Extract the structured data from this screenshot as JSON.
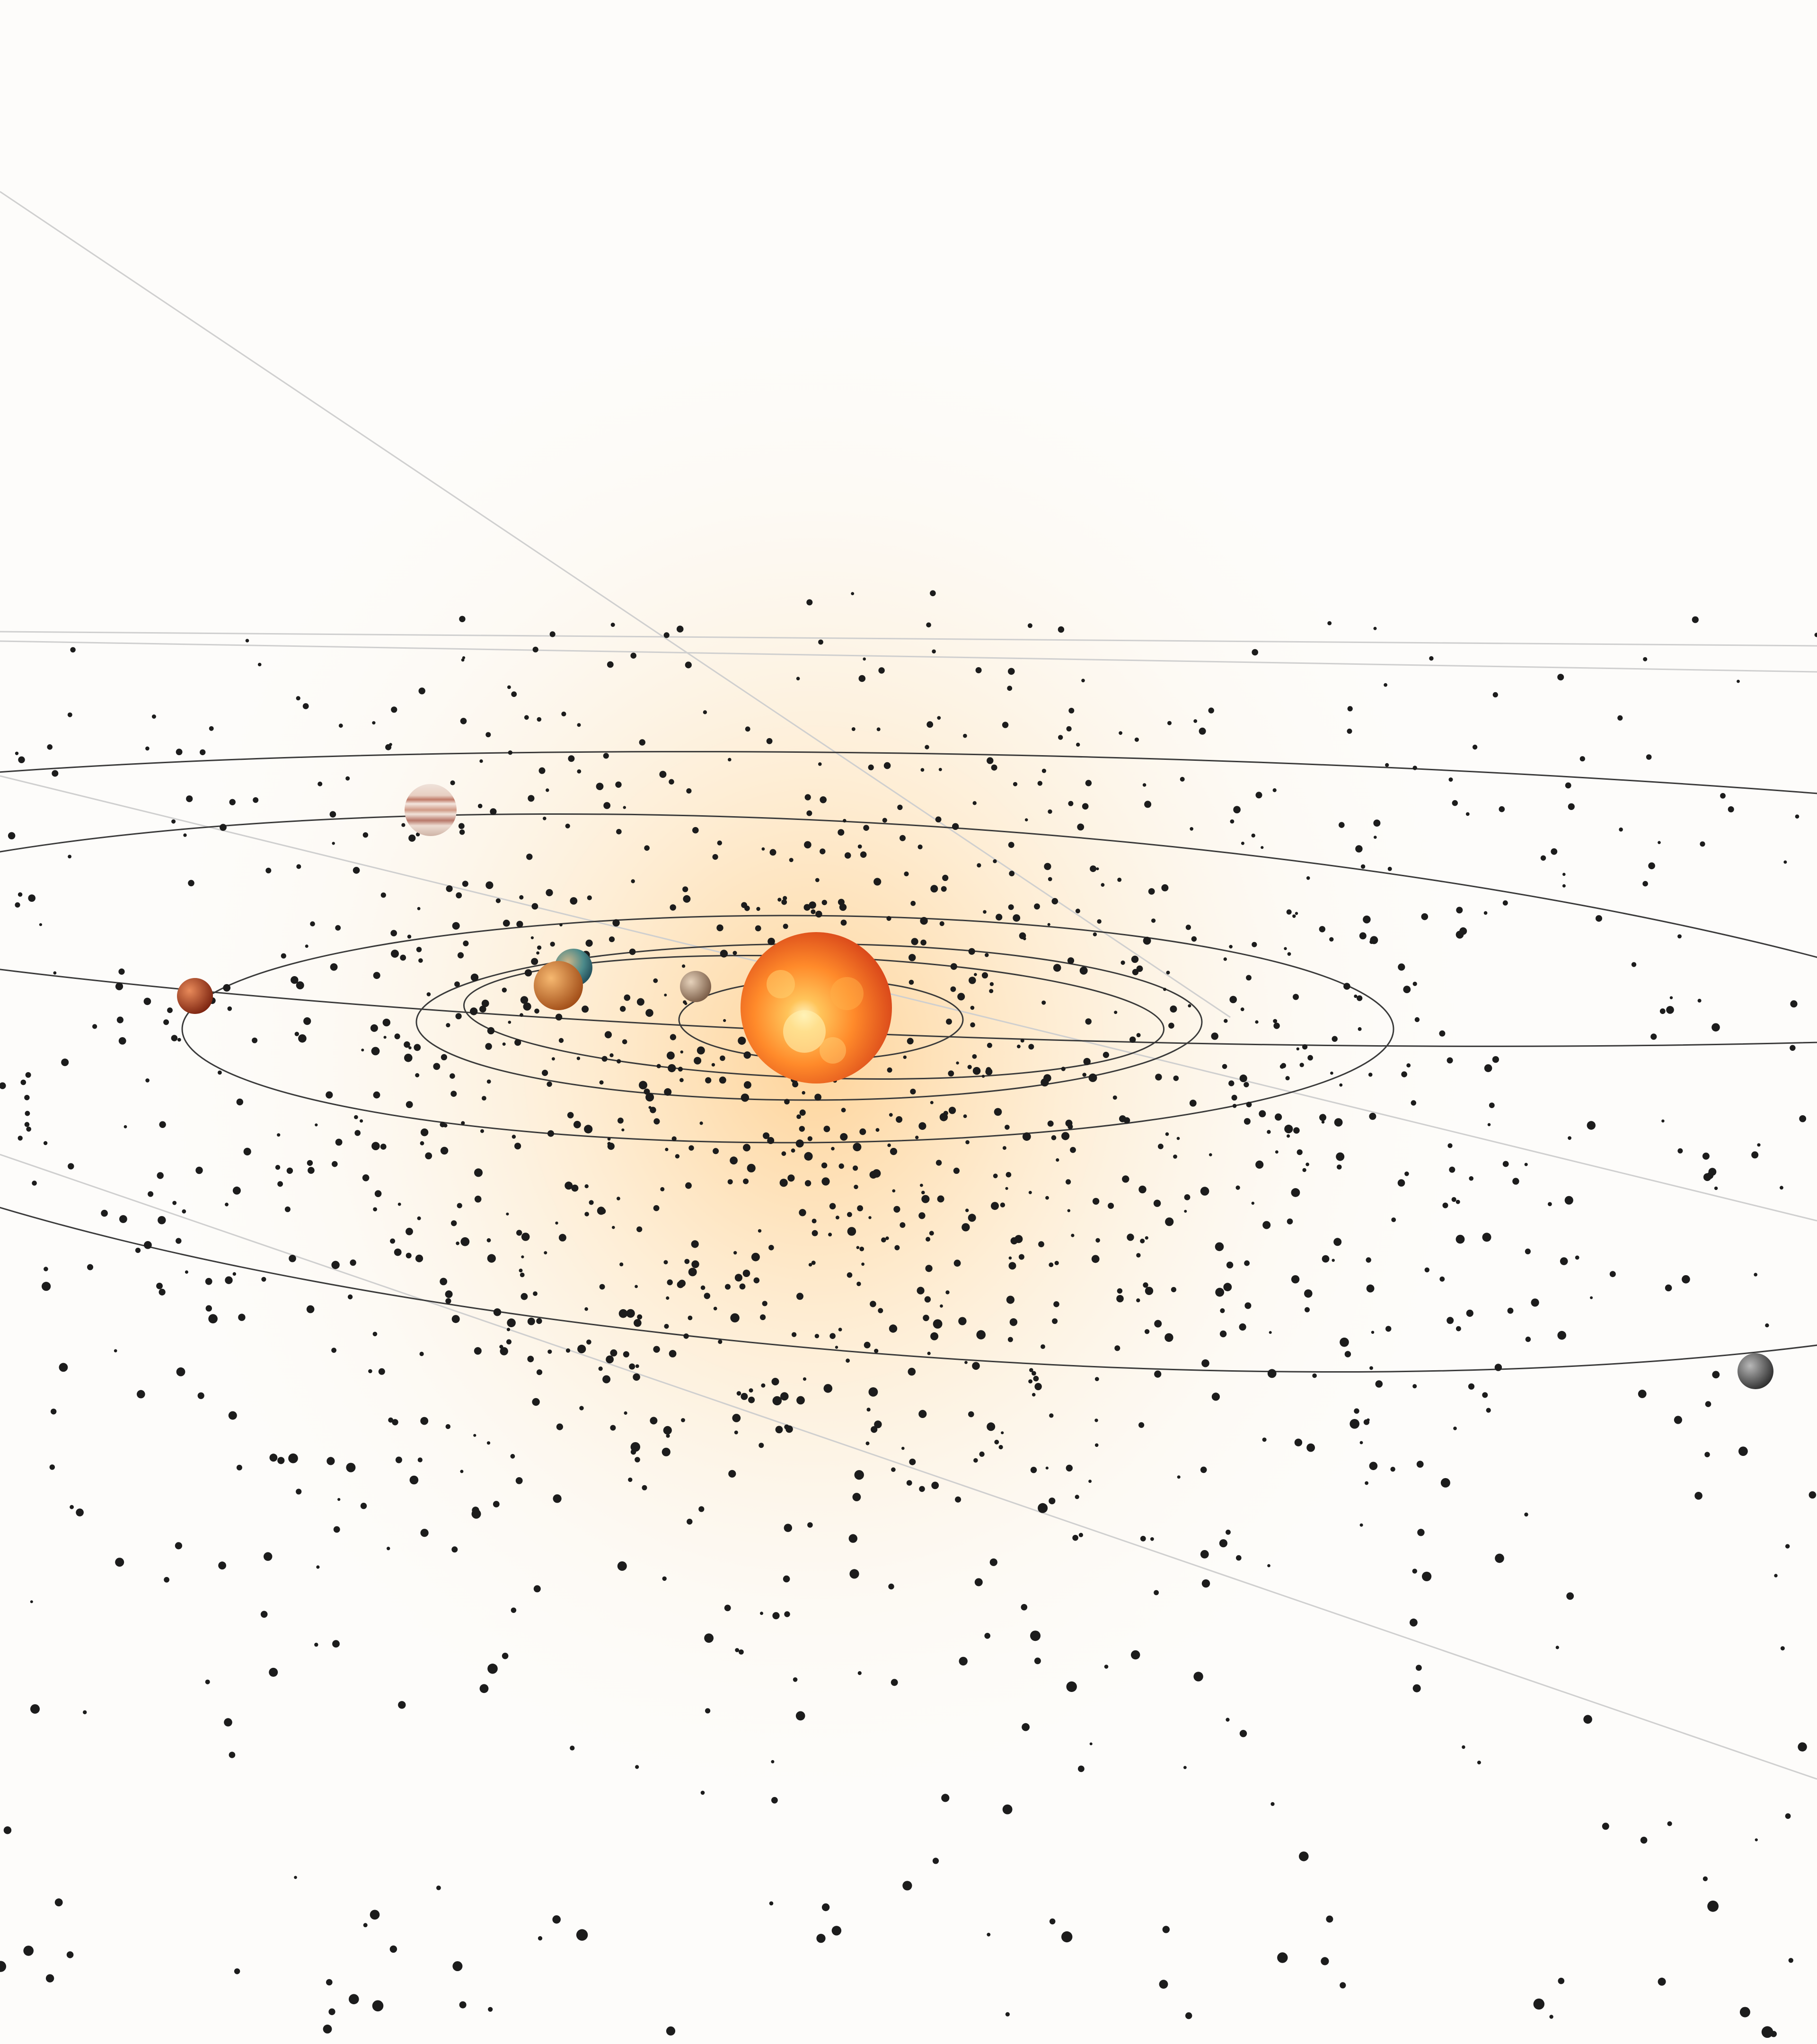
{
  "scene": {
    "background": "#fdfcfa",
    "glow_color": "#ffb24a",
    "orbit_color": "#3a3a3a",
    "guide_line_color": "#c9c9c9",
    "dust_color": "#1c1c1c"
  },
  "bodies": [
    {
      "name": "sun",
      "icon": "sun-icon",
      "colors": [
        "#ffe08a",
        "#ff8a2a",
        "#e2521a"
      ]
    },
    {
      "name": "mercury",
      "icon": "planet-icon",
      "colors": [
        "#d9c2a8",
        "#8a6a52"
      ]
    },
    {
      "name": "venus",
      "icon": "planet-icon",
      "colors": [
        "#f0a860",
        "#b05a20"
      ]
    },
    {
      "name": "earth",
      "icon": "planet-icon",
      "colors": [
        "#c9b58a",
        "#2f6b78"
      ]
    },
    {
      "name": "mars",
      "icon": "planet-icon",
      "colors": [
        "#e07a4a",
        "#8a2a14"
      ]
    },
    {
      "name": "jupiter",
      "icon": "planet-icon",
      "colors": [
        "#f2e2d8",
        "#b87a6a"
      ]
    },
    {
      "name": "outer-planet",
      "icon": "planet-icon",
      "colors": [
        "#a8a8a8",
        "#3a3a3a"
      ]
    }
  ]
}
